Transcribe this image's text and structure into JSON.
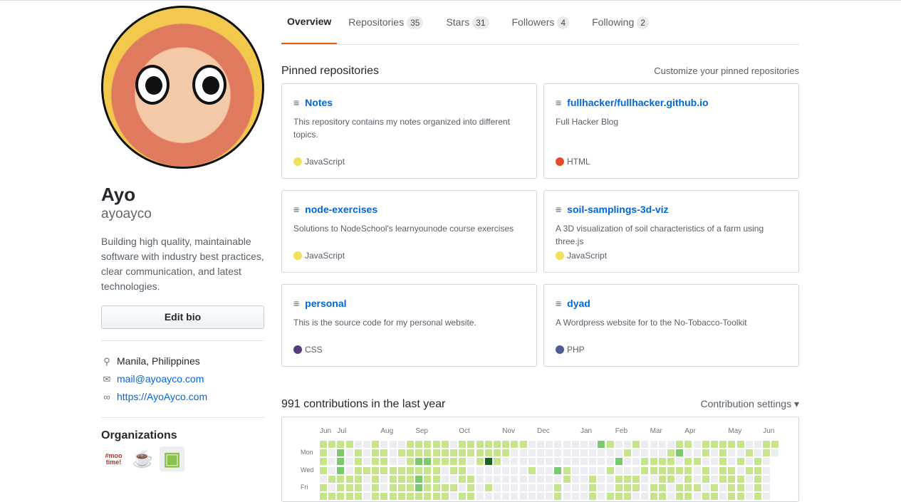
{
  "profile": {
    "name": "Ayo",
    "login": "ayoayco",
    "bio": "Building high quality, maintainable software with industry best practices, clear communication, and latest technologies.",
    "edit_bio": "Edit bio",
    "location": "Manila, Philippines",
    "email": "mail@ayoayco.com",
    "website": "https://AyoAyco.com",
    "organizations_heading": "Organizations",
    "orgs": [
      {
        "label": "#moo time!"
      },
      {
        "label": "☕"
      },
      {
        "label": "▣"
      }
    ]
  },
  "tabs": [
    {
      "label": "Overview"
    },
    {
      "label": "Repositories",
      "count": "35"
    },
    {
      "label": "Stars",
      "count": "31"
    },
    {
      "label": "Followers",
      "count": "4"
    },
    {
      "label": "Following",
      "count": "2"
    }
  ],
  "pinned": {
    "heading": "Pinned repositories",
    "customize": "Customize your pinned repositories",
    "repos": [
      {
        "name": "Notes",
        "desc": "This repository contains my notes organized into different topics.",
        "lang": "JavaScript",
        "color": "#f1e05a"
      },
      {
        "name": "fullhacker/fullhacker.github.io",
        "desc": "Full Hacker Blog",
        "lang": "HTML",
        "color": "#e34c26"
      },
      {
        "name": "node-exercises",
        "desc": "Solutions to NodeSchool's learnyounode course exercises",
        "lang": "JavaScript",
        "color": "#f1e05a"
      },
      {
        "name": "soil-samplings-3d-viz",
        "desc": "A 3D visualization of soil characteristics of a farm using three.js",
        "lang": "JavaScript",
        "color": "#f1e05a"
      },
      {
        "name": "personal",
        "desc": "This is the source code for my personal website.",
        "lang": "CSS",
        "color": "#563d7c"
      },
      {
        "name": "dyad",
        "desc": "A Wordpress website for to the No-Tobacco-Toolkit",
        "lang": "PHP",
        "color": "#4F5D95"
      }
    ]
  },
  "contrib": {
    "heading": "991 contributions in the last year",
    "settings": "Contribution settings ▾",
    "months": [
      {
        "label": "Jun",
        "col": 0
      },
      {
        "label": "Jul",
        "col": 2
      },
      {
        "label": "Aug",
        "col": 7
      },
      {
        "label": "Sep",
        "col": 11
      },
      {
        "label": "Oct",
        "col": 16
      },
      {
        "label": "Nov",
        "col": 21
      },
      {
        "label": "Dec",
        "col": 25
      },
      {
        "label": "Jan",
        "col": 30
      },
      {
        "label": "Feb",
        "col": 34
      },
      {
        "label": "Mar",
        "col": 38
      },
      {
        "label": "Apr",
        "col": 42
      },
      {
        "label": "May",
        "col": 47
      },
      {
        "label": "Jun",
        "col": 51
      }
    ],
    "days": [
      {
        "label": "Mon",
        "row": 1
      },
      {
        "label": "Wed",
        "row": 3
      },
      {
        "label": "Fri",
        "row": 5
      }
    ],
    "colors": [
      "#ebedf0",
      "#c6e48b",
      "#7bc96f",
      "#196127"
    ],
    "levels": [
      "11110010001111101111111100000000210010000110111110011",
      "10201011011111111111110000000000000100001200101001010",
      "1020101100122111101310000000000000200111101100101010",
      "1020111111111101100000001002100001000111111010110110",
      "0111101011121100110000000000100100111001101010111010",
      "1011101011121111010100000001000100111011011101011010",
      "1111101111111110110000000001000101110011011011011010"
    ]
  }
}
